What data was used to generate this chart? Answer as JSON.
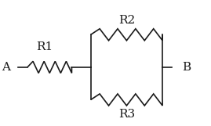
{
  "bg_color": "#ffffff",
  "line_color": "#1a1a1a",
  "label_color": "#1a1a1a",
  "label_A": "A",
  "label_B": "B",
  "label_R1": "R1",
  "label_R2": "R2",
  "label_R3": "R3",
  "fig_width": 2.69,
  "fig_height": 1.61,
  "dpi": 100,
  "lw": 1.2
}
